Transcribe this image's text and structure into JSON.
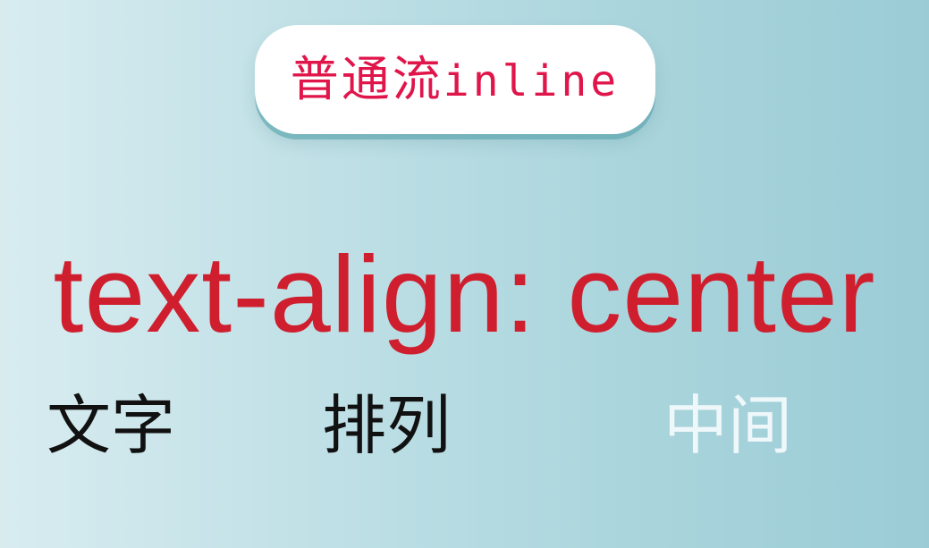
{
  "title": {
    "cjk": "普通流",
    "latin": "inline"
  },
  "headline": "text-align: center",
  "words": [
    "文字",
    "排列",
    "中间"
  ],
  "colors": {
    "title_text": "#e0154a",
    "headline": "#cf1f2e",
    "dark_word": "#111111",
    "highlight_word": "#eef7f9"
  }
}
